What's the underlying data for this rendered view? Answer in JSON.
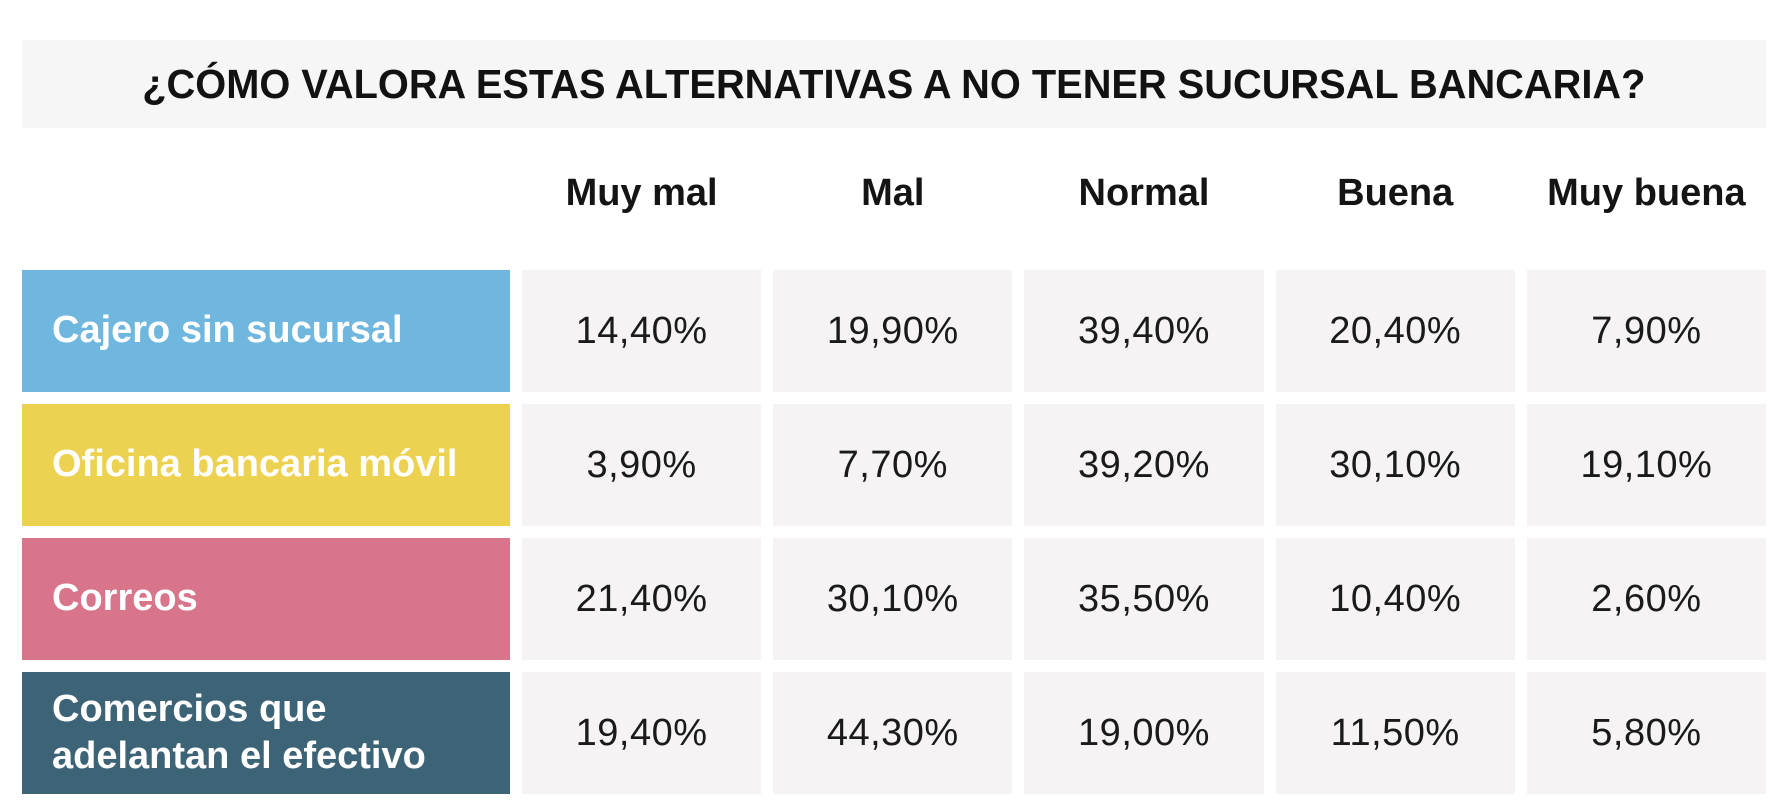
{
  "title": "¿CÓMO VALORA ESTAS ALTERNATIVAS A NO TENER SUCURSAL BANCARIA?",
  "colors": {
    "title_band_bg": "#f7f6f6",
    "value_cell_bg": "#f5f3f3",
    "text": "#141414",
    "row_label_text": "#ffffff"
  },
  "chart_data": {
    "type": "table",
    "title": "¿CÓMO VALORA ESTAS ALTERNATIVAS A NO TENER SUCURSAL BANCARIA?",
    "categories": [
      "Muy mal",
      "Mal",
      "Normal",
      "Buena",
      "Muy buena"
    ],
    "rows": [
      {
        "label": "Cajero sin sucursal",
        "color": "#6fb7de",
        "values": [
          "14,40%",
          "19,90%",
          "39,40%",
          "20,40%",
          "7,90%"
        ],
        "values_numeric": [
          14.4,
          19.9,
          39.4,
          20.4,
          7.9
        ]
      },
      {
        "label": "Oficina bancaria móvil",
        "color": "#edd150",
        "values": [
          "3,90%",
          "7,70%",
          "39,20%",
          "30,10%",
          "19,10%"
        ],
        "values_numeric": [
          3.9,
          7.7,
          39.2,
          30.1,
          19.1
        ]
      },
      {
        "label": "Correos",
        "color": "#d9758b",
        "values": [
          "21,40%",
          "30,10%",
          "35,50%",
          "10,40%",
          "2,60%"
        ],
        "values_numeric": [
          21.4,
          30.1,
          35.5,
          10.4,
          2.6
        ]
      },
      {
        "label": "Comercios que adelantan el efectivo",
        "color": "#3d6376",
        "values": [
          "19,40%",
          "44,30%",
          "19,00%",
          "11,50%",
          "5,80%"
        ],
        "values_numeric": [
          19.4,
          44.3,
          19.0,
          11.5,
          5.8
        ]
      }
    ],
    "legend_position": "none",
    "grid": false,
    "value_unit": "%"
  }
}
